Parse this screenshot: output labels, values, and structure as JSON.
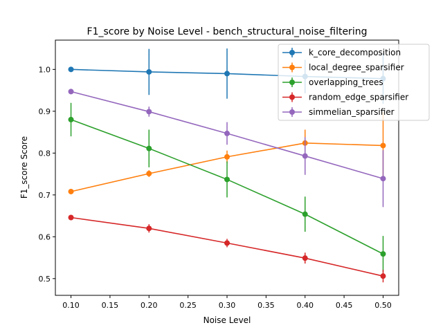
{
  "chart_data": {
    "type": "line",
    "title": "F1_score by Noise Level - bench_structural_noise_filtering",
    "xlabel": "Noise Level",
    "ylabel": "F1_score Score",
    "xlim": [
      0.08,
      0.52
    ],
    "ylim": [
      0.46,
      1.07
    ],
    "grid": false,
    "legend_position": "top-right",
    "x_ticks": [
      "0.10",
      "0.15",
      "0.20",
      "0.25",
      "0.30",
      "0.35",
      "0.40",
      "0.45",
      "0.50"
    ],
    "y_ticks": [
      "0.5",
      "0.6",
      "0.7",
      "0.8",
      "0.9",
      "1.0"
    ],
    "x": [
      0.1,
      0.2,
      0.3,
      0.4,
      0.5
    ],
    "series": [
      {
        "name": "k_core_decomposition",
        "color": "#1f77b4",
        "values": [
          1.0,
          0.994,
          0.99,
          0.983,
          0.978
        ],
        "errors": [
          0.0,
          0.055,
          0.06,
          0.04,
          0.06
        ]
      },
      {
        "name": "local_degree_sparsifier",
        "color": "#ff7f0e",
        "values": [
          0.708,
          0.751,
          0.791,
          0.824,
          0.818
        ],
        "errors": [
          0.005,
          0.008,
          0.015,
          0.032,
          0.08
        ]
      },
      {
        "name": "overlapping_trees",
        "color": "#2ca02c",
        "values": [
          0.88,
          0.811,
          0.737,
          0.654,
          0.559
        ],
        "errors": [
          0.04,
          0.045,
          0.043,
          0.042,
          0.043
        ]
      },
      {
        "name": "random_edge_sparsifier",
        "color": "#d62728",
        "values": [
          0.646,
          0.62,
          0.585,
          0.549,
          0.506
        ],
        "errors": [
          0.004,
          0.01,
          0.01,
          0.013,
          0.015
        ]
      },
      {
        "name": "simmelian_sparsifier",
        "color": "#9467bd",
        "values": [
          0.947,
          0.899,
          0.847,
          0.793,
          0.739
        ],
        "errors": [
          0.004,
          0.012,
          0.027,
          0.045,
          0.068
        ]
      }
    ]
  }
}
